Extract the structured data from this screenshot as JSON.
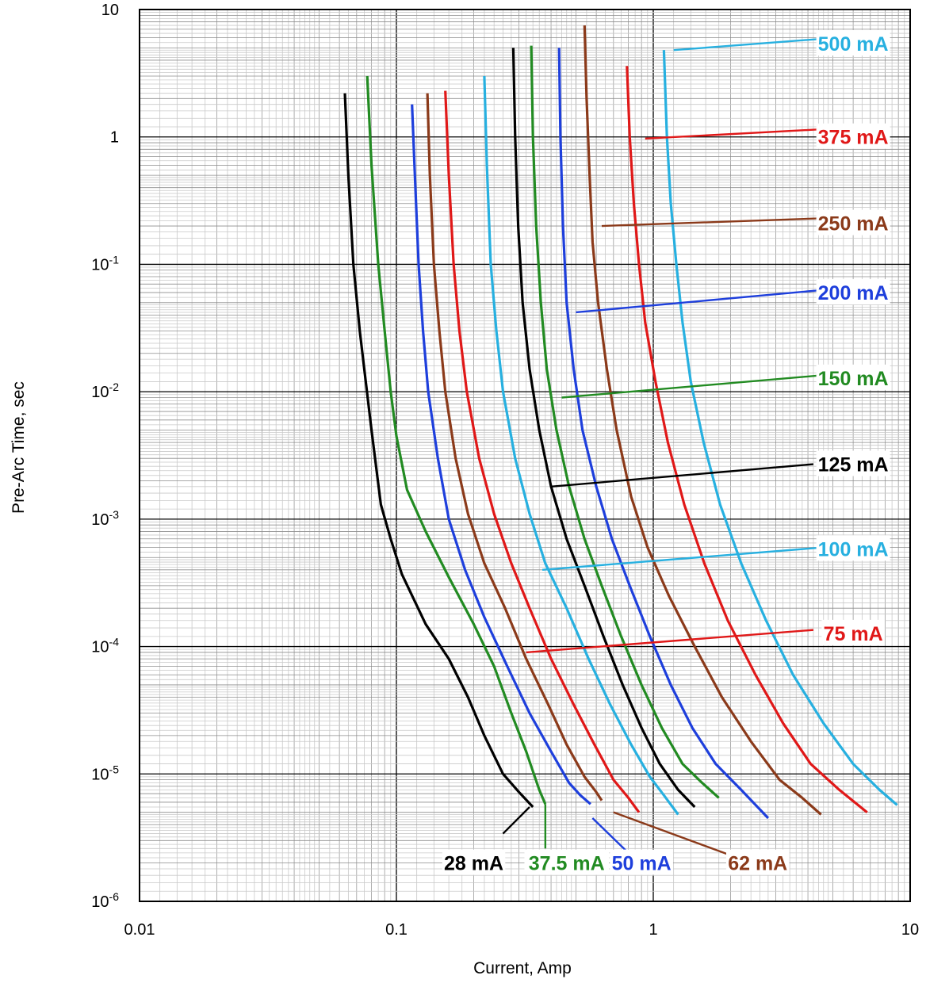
{
  "chart_data": {
    "type": "line",
    "title": "",
    "xlabel": "Current, Amp",
    "ylabel": "Pre-Arc Time, sec",
    "x_scale": "log",
    "y_scale": "log",
    "xlim": [
      0.01,
      10
    ],
    "ylim": [
      1e-06,
      10
    ],
    "grid": true,
    "x_ticks": [
      {
        "value": 0.01,
        "label": "0.01"
      },
      {
        "value": 0.1,
        "label": "0.1"
      },
      {
        "value": 1,
        "label": "1"
      },
      {
        "value": 10,
        "label": "10"
      }
    ],
    "y_ticks": [
      {
        "value": 10,
        "base": "10",
        "exp": ""
      },
      {
        "value": 1,
        "base": "1",
        "exp": ""
      },
      {
        "value": 0.1,
        "base": "10",
        "exp": "-1"
      },
      {
        "value": 0.01,
        "base": "10",
        "exp": "-2"
      },
      {
        "value": 0.001,
        "base": "10",
        "exp": "-3"
      },
      {
        "value": 0.0001,
        "base": "10",
        "exp": "-4"
      },
      {
        "value": 1e-05,
        "base": "10",
        "exp": "-5"
      },
      {
        "value": 1e-06,
        "base": "10",
        "exp": "-6"
      }
    ],
    "series": [
      {
        "name": "28 mA",
        "color": "#000000",
        "points": [
          [
            0.063,
            2.2
          ],
          [
            0.065,
            0.5
          ],
          [
            0.068,
            0.1
          ],
          [
            0.072,
            0.03
          ],
          [
            0.075,
            0.015
          ],
          [
            0.08,
            0.005
          ],
          [
            0.087,
            0.0013
          ],
          [
            0.095,
            0.0007
          ],
          [
            0.105,
            0.00037
          ],
          [
            0.13,
            0.00015
          ],
          [
            0.16,
            8e-05
          ],
          [
            0.19,
            4e-05
          ],
          [
            0.22,
            2e-05
          ],
          [
            0.26,
            1e-05
          ],
          [
            0.3,
            7.2e-06
          ],
          [
            0.34,
            5.5e-06
          ]
        ],
        "label_pos": {
          "x": 0.2,
          "y": 2e-06
        },
        "leader": [
          [
            0.33,
            5.5e-06
          ],
          [
            0.26,
            3.4e-06
          ]
        ]
      },
      {
        "name": "37.5 mA",
        "color": "#228b22",
        "points": [
          [
            0.077,
            3.0
          ],
          [
            0.08,
            0.6
          ],
          [
            0.085,
            0.1
          ],
          [
            0.09,
            0.03
          ],
          [
            0.095,
            0.01
          ],
          [
            0.1,
            0.0045
          ],
          [
            0.11,
            0.0017
          ],
          [
            0.13,
            0.0008
          ],
          [
            0.16,
            0.00035
          ],
          [
            0.2,
            0.00015
          ],
          [
            0.24,
            7e-05
          ],
          [
            0.28,
            3e-05
          ],
          [
            0.32,
            1.5e-05
          ],
          [
            0.36,
            7.5e-06
          ],
          [
            0.38,
            5.8e-06
          ]
        ],
        "label_pos": {
          "x": 0.46,
          "y": 2e-06
        },
        "leader": [
          [
            0.38,
            5.8e-06
          ],
          [
            0.38,
            2.6e-06
          ]
        ]
      },
      {
        "name": "50 mA",
        "color": "#1e3fdc",
        "points": [
          [
            0.115,
            1.8
          ],
          [
            0.118,
            0.5
          ],
          [
            0.122,
            0.1
          ],
          [
            0.127,
            0.03
          ],
          [
            0.133,
            0.01
          ],
          [
            0.145,
            0.003
          ],
          [
            0.16,
            0.001
          ],
          [
            0.185,
            0.0004
          ],
          [
            0.22,
            0.00017
          ],
          [
            0.27,
            7e-05
          ],
          [
            0.33,
            3e-05
          ],
          [
            0.4,
            1.5e-05
          ],
          [
            0.47,
            8.5e-06
          ],
          [
            0.52,
            6.8e-06
          ],
          [
            0.57,
            5.8e-06
          ]
        ],
        "label_pos": {
          "x": 0.9,
          "y": 2e-06
        },
        "leader": [
          [
            0.58,
            4.5e-06
          ],
          [
            0.8,
            2.4e-06
          ]
        ]
      },
      {
        "name": "62 mA",
        "color": "#8b3a1a",
        "points": [
          [
            0.132,
            2.2
          ],
          [
            0.135,
            0.5
          ],
          [
            0.14,
            0.1
          ],
          [
            0.147,
            0.03
          ],
          [
            0.155,
            0.01
          ],
          [
            0.17,
            0.003
          ],
          [
            0.19,
            0.0011
          ],
          [
            0.22,
            0.00045
          ],
          [
            0.265,
            0.0002
          ],
          [
            0.32,
            8e-05
          ],
          [
            0.39,
            3.5e-05
          ],
          [
            0.46,
            1.7e-05
          ],
          [
            0.54,
            9.5e-06
          ],
          [
            0.6,
            7.2e-06
          ],
          [
            0.63,
            6.2e-06
          ]
        ],
        "label_pos": {
          "x": 2.55,
          "y": 2e-06
        },
        "leader": [
          [
            0.7,
            5e-06
          ],
          [
            2.0,
            2.3e-06
          ]
        ]
      },
      {
        "name": "75 mA",
        "color": "#e01818",
        "points": [
          [
            0.155,
            2.3
          ],
          [
            0.16,
            0.5
          ],
          [
            0.167,
            0.1
          ],
          [
            0.176,
            0.03
          ],
          [
            0.188,
            0.01
          ],
          [
            0.21,
            0.003
          ],
          [
            0.24,
            0.0011
          ],
          [
            0.28,
            0.00045
          ],
          [
            0.33,
            0.0002
          ],
          [
            0.4,
            8e-05
          ],
          [
            0.49,
            3.5e-05
          ],
          [
            0.59,
            1.7e-05
          ],
          [
            0.7,
            9e-06
          ],
          [
            0.8,
            6.5e-06
          ],
          [
            0.88,
            5e-06
          ]
        ],
        "label_pos": {
          "x": 6.0,
          "y": 0.000127
        },
        "leader": [
          [
            0.32,
            9e-05
          ],
          [
            4.2,
            0.000135
          ]
        ]
      },
      {
        "name": "100 mA",
        "color": "#27b0e0",
        "points": [
          [
            0.22,
            3.0
          ],
          [
            0.225,
            0.6
          ],
          [
            0.233,
            0.1
          ],
          [
            0.245,
            0.03
          ],
          [
            0.26,
            0.01
          ],
          [
            0.29,
            0.003
          ],
          [
            0.33,
            0.0011
          ],
          [
            0.38,
            0.00045
          ],
          [
            0.46,
            0.0002
          ],
          [
            0.56,
            8e-05
          ],
          [
            0.68,
            3.5e-05
          ],
          [
            0.82,
            1.7e-05
          ],
          [
            0.97,
            9.5e-06
          ],
          [
            1.1,
            6.8e-06
          ],
          [
            1.25,
            4.8e-06
          ]
        ],
        "label_pos": {
          "x": 6.0,
          "y": 0.000585
        },
        "leader": [
          [
            0.37,
            0.0004
          ],
          [
            4.6,
            0.0006
          ]
        ]
      },
      {
        "name": "125 mA",
        "color": "#000000",
        "points": [
          [
            0.285,
            5.0
          ],
          [
            0.29,
            1.0
          ],
          [
            0.298,
            0.2
          ],
          [
            0.31,
            0.05
          ],
          [
            0.33,
            0.015
          ],
          [
            0.36,
            0.005
          ],
          [
            0.4,
            0.0018
          ],
          [
            0.46,
            0.0007
          ],
          [
            0.54,
            0.0003
          ],
          [
            0.64,
            0.00012
          ],
          [
            0.76,
            5e-05
          ],
          [
            0.9,
            2.3e-05
          ],
          [
            1.06,
            1.2e-05
          ],
          [
            1.25,
            7.5e-06
          ],
          [
            1.45,
            5.5e-06
          ]
        ],
        "label_pos": {
          "x": 6.0,
          "y": 0.0027
        },
        "leader": [
          [
            0.4,
            0.0018
          ],
          [
            4.2,
            0.0027
          ]
        ]
      },
      {
        "name": "150 mA",
        "color": "#228b22",
        "points": [
          [
            0.335,
            5.2
          ],
          [
            0.34,
            1.0
          ],
          [
            0.35,
            0.2
          ],
          [
            0.365,
            0.05
          ],
          [
            0.385,
            0.015
          ],
          [
            0.42,
            0.005
          ],
          [
            0.47,
            0.0018
          ],
          [
            0.54,
            0.0007
          ],
          [
            0.63,
            0.0003
          ],
          [
            0.75,
            0.00012
          ],
          [
            0.9,
            5e-05
          ],
          [
            1.08,
            2.3e-05
          ],
          [
            1.3,
            1.2e-05
          ],
          [
            1.55,
            8.5e-06
          ],
          [
            1.8,
            6.5e-06
          ]
        ],
        "label_pos": {
          "x": 6.0,
          "y": 0.0128
        },
        "leader": [
          [
            0.44,
            0.009
          ],
          [
            4.6,
            0.0135
          ]
        ]
      },
      {
        "name": "200 mA",
        "color": "#1e3fdc",
        "points": [
          [
            0.43,
            5.0
          ],
          [
            0.435,
            1.0
          ],
          [
            0.445,
            0.2
          ],
          [
            0.46,
            0.05
          ],
          [
            0.49,
            0.015
          ],
          [
            0.53,
            0.005
          ],
          [
            0.6,
            0.0018
          ],
          [
            0.69,
            0.0007
          ],
          [
            0.81,
            0.0003
          ],
          [
            0.97,
            0.00012
          ],
          [
            1.17,
            5e-05
          ],
          [
            1.42,
            2.3e-05
          ],
          [
            1.75,
            1.2e-05
          ],
          [
            2.2,
            7.5e-06
          ],
          [
            2.8,
            4.5e-06
          ]
        ],
        "label_pos": {
          "x": 6.0,
          "y": 0.06
        },
        "leader": [
          [
            0.5,
            0.042
          ],
          [
            4.6,
            0.063
          ]
        ]
      },
      {
        "name": "250 mA",
        "color": "#8b3a1a",
        "points": [
          [
            0.54,
            7.5
          ],
          [
            0.55,
            2.0
          ],
          [
            0.565,
            0.5
          ],
          [
            0.58,
            0.15
          ],
          [
            0.61,
            0.05
          ],
          [
            0.66,
            0.015
          ],
          [
            0.72,
            0.005
          ],
          [
            0.82,
            0.0015
          ],
          [
            0.95,
            0.0006
          ],
          [
            1.15,
            0.00025
          ],
          [
            1.45,
            0.0001
          ],
          [
            1.85,
            4e-05
          ],
          [
            2.4,
            1.8e-05
          ],
          [
            3.1,
            9e-06
          ],
          [
            3.8,
            6.5e-06
          ],
          [
            4.5,
            4.8e-06
          ]
        ],
        "label_pos": {
          "x": 6.0,
          "y": 0.21
        },
        "leader": [
          [
            0.63,
            0.2
          ],
          [
            4.6,
            0.23
          ]
        ]
      },
      {
        "name": "375 mA",
        "color": "#e01818",
        "points": [
          [
            0.79,
            3.6
          ],
          [
            0.81,
            1.0
          ],
          [
            0.84,
            0.3
          ],
          [
            0.88,
            0.1
          ],
          [
            0.93,
            0.035
          ],
          [
            1.02,
            0.012
          ],
          [
            1.14,
            0.004
          ],
          [
            1.32,
            0.0013
          ],
          [
            1.58,
            0.00045
          ],
          [
            1.95,
            0.00016
          ],
          [
            2.5,
            6e-05
          ],
          [
            3.2,
            2.5e-05
          ],
          [
            4.1,
            1.2e-05
          ],
          [
            5.3,
            7.5e-06
          ],
          [
            6.8,
            5e-06
          ]
        ],
        "label_pos": {
          "x": 6.0,
          "y": 1.0
        },
        "leader": [
          [
            0.93,
            0.97
          ],
          [
            4.6,
            1.15
          ]
        ]
      },
      {
        "name": "500 mA",
        "color": "#27b0e0",
        "points": [
          [
            1.1,
            4.8
          ],
          [
            1.13,
            1.0
          ],
          [
            1.17,
            0.3
          ],
          [
            1.23,
            0.1
          ],
          [
            1.3,
            0.035
          ],
          [
            1.4,
            0.012
          ],
          [
            1.57,
            0.004
          ],
          [
            1.82,
            0.0013
          ],
          [
            2.2,
            0.00045
          ],
          [
            2.75,
            0.00016
          ],
          [
            3.5,
            6e-05
          ],
          [
            4.6,
            2.5e-05
          ],
          [
            6.0,
            1.2e-05
          ],
          [
            7.6,
            7.5e-06
          ],
          [
            8.9,
            5.7e-06
          ]
        ],
        "label_pos": {
          "x": 6.0,
          "y": 5.4
        },
        "leader": [
          [
            1.2,
            4.8
          ],
          [
            4.6,
            5.9
          ]
        ]
      }
    ]
  }
}
